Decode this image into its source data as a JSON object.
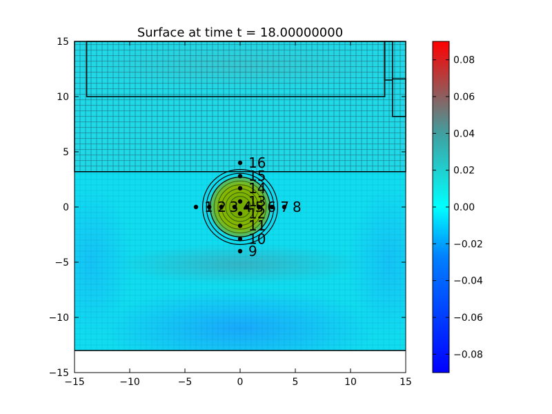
{
  "chart_data": {
    "type": "heatmap",
    "title": "Surface at time t =    18.00000000",
    "xlabel": "",
    "ylabel": "",
    "xlim": [
      -15,
      15
    ],
    "ylim": [
      -15,
      15
    ],
    "xticks": [
      "−15",
      "−10",
      "−5",
      "0",
      "5",
      "10",
      "15"
    ],
    "yticks": [
      "−15",
      "−10",
      "−5",
      "0",
      "5",
      "10",
      "15"
    ],
    "colorbar": {
      "range": [
        -0.09,
        0.09
      ],
      "ticks": [
        "0.08",
        "0.06",
        "0.04",
        "0.02",
        "0.00",
        "−0.02",
        "−0.04",
        "−0.06",
        "−0.08"
      ],
      "colors": [
        "#0000ff",
        "#00ffff",
        "#ff0000"
      ]
    },
    "surface_extent": {
      "ymin": -13,
      "ymax": 15
    },
    "refinement_patches": [
      {
        "xmin": -15,
        "xmax": 15,
        "ymin": 3.2,
        "ymax": 15
      },
      {
        "xmin": -13.9,
        "xmax": 13.1,
        "ymin": 10,
        "ymax": 15
      },
      {
        "xmin": 13.1,
        "xmax": 13.8,
        "ymin": 11.5,
        "ymax": 15
      },
      {
        "xmin": 13.8,
        "xmax": 15,
        "ymin": 8.2,
        "ymax": 11.6
      }
    ],
    "hump": {
      "center": [
        0,
        0
      ],
      "radius": 3.4,
      "contours": 8
    },
    "gauges": [
      {
        "label": "1",
        "x": -4.0,
        "y": 0
      },
      {
        "label": "2",
        "x": -2.8,
        "y": 0
      },
      {
        "label": "3",
        "x": -1.7,
        "y": 0
      },
      {
        "label": "4",
        "x": -0.5,
        "y": 0
      },
      {
        "label": "5",
        "x": 0.6,
        "y": 0
      },
      {
        "label": "6",
        "x": 1.7,
        "y": 0
      },
      {
        "label": "7",
        "x": 2.9,
        "y": 0
      },
      {
        "label": "8",
        "x": 4.0,
        "y": 0
      },
      {
        "label": "16",
        "x": 0,
        "y": 4.0
      },
      {
        "label": "15",
        "x": 0,
        "y": 2.8
      },
      {
        "label": "14",
        "x": 0,
        "y": 1.7
      },
      {
        "label": "13",
        "x": 0,
        "y": 0.5
      },
      {
        "label": "12",
        "x": 0,
        "y": -0.6
      },
      {
        "label": "11",
        "x": 0,
        "y": -1.7
      },
      {
        "label": "10",
        "x": 0,
        "y": -2.9
      },
      {
        "label": "9",
        "x": 0,
        "y": -4.0
      }
    ]
  }
}
